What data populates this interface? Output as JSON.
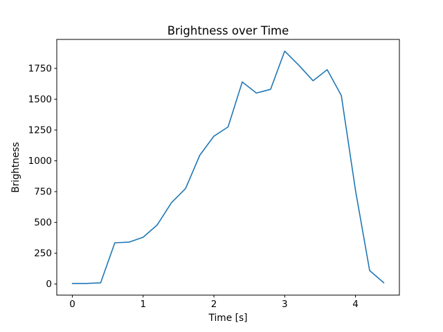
{
  "chart_data": {
    "type": "line",
    "title": "Brightness over Time",
    "xlabel": "Time [s]",
    "ylabel": "Brightness",
    "x": [
      0.0,
      0.2,
      0.4,
      0.6,
      0.8,
      1.0,
      1.2,
      1.4,
      1.6,
      1.8,
      2.0,
      2.2,
      2.4,
      2.6,
      2.8,
      3.0,
      3.2,
      3.4,
      3.6,
      3.8,
      4.0,
      4.2,
      4.4
    ],
    "y": [
      5,
      5,
      10,
      335,
      340,
      380,
      480,
      660,
      775,
      1045,
      1200,
      1275,
      1640,
      1550,
      1580,
      1890,
      1775,
      1650,
      1740,
      1530,
      760,
      110,
      10
    ],
    "series_name": "Brightness",
    "x_ticks": [
      0,
      1,
      2,
      3,
      4
    ],
    "y_ticks": [
      0,
      250,
      500,
      750,
      1000,
      1250,
      1500,
      1750
    ],
    "xlim": [
      -0.22,
      4.62
    ],
    "ylim": [
      -90,
      1985
    ],
    "grid": false,
    "legend": null,
    "line_color": "#1f77b4",
    "axis_color": "#000000",
    "background_color": "#ffffff"
  }
}
